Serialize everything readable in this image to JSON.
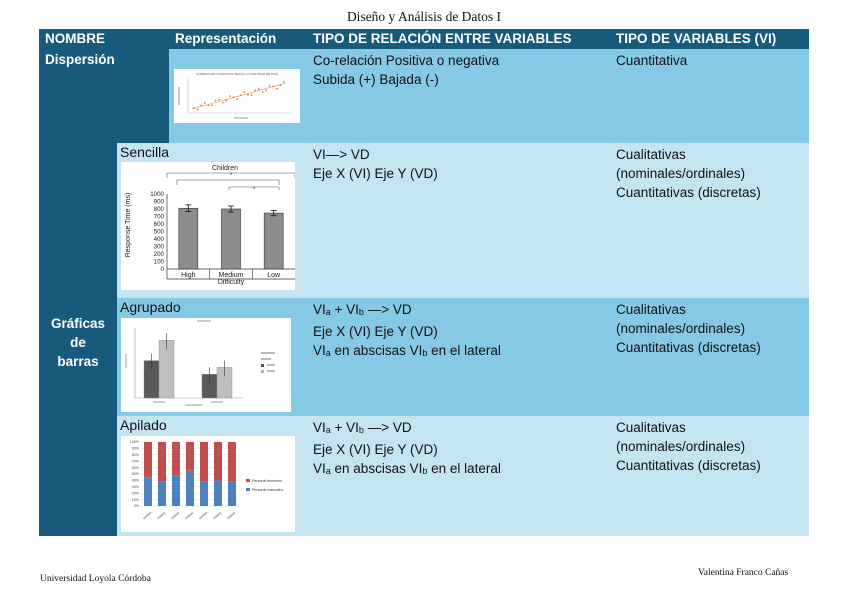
{
  "title": "Diseño y Análisis de Datos I",
  "headers": {
    "nombre": "NOMBRE",
    "representacion": "Representación",
    "relacion": "TIPO DE RELACIÓN ENTRE VARIABLES",
    "variables": "TIPO DE VARIABLES (VI)"
  },
  "dispersion": {
    "name": "Dispersión",
    "relacion_1": "Co-relación Positiva o negativa",
    "relacion_2": "Subida (+) Bajada (-)",
    "variables_1": "Cuantitativa",
    "thumb_title": "NÚMERO DE CONSULTAS SEGÚN LA CANTIDAD DE PAÍS"
  },
  "barras": {
    "name_1": "Gráficas",
    "name_2": "de",
    "name_3": "barras",
    "sencilla": {
      "label": "Sencilla",
      "relacion_1": "VI—> VD",
      "relacion_2": "Eje X (VI) Eje Y (VD)",
      "variables_1": "Cualitativas",
      "variables_2": "(nominales/ordinales)",
      "variables_3": "Cuantitativas  (discretas)",
      "chart": {
        "title": "Children",
        "ylabel": "Response Time (ms)",
        "xlabel": "Difficulty",
        "sig": "*",
        "y_ticks": [
          "1000",
          "900",
          "800",
          "700",
          "600",
          "500",
          "400",
          "300",
          "200",
          "100",
          "0"
        ]
      }
    },
    "agrupado": {
      "label": "Agrupado",
      "relacion_1_a": "VI",
      "relacion_1_sub_a": "a",
      "relacion_1_b": " + VI",
      "relacion_1_sub_b": "b",
      "relacion_1_c": " —> VD",
      "relacion_2": "Eje X (VI) Eje Y (VD)",
      "relacion_3_a": "VI",
      "relacion_3_sub_a": "a",
      "relacion_3_b": " en abscisas VI",
      "relacion_3_sub_b": "b",
      "relacion_3_c": " en el lateral",
      "variables_1": "Cualitativas",
      "variables_2": "(nominales/ordinales)",
      "variables_3": "Cuantitativas  (discretas)"
    },
    "apilado": {
      "label": "Apilado",
      "relacion_1_a": "VI",
      "relacion_1_sub_a": "a",
      "relacion_1_b": " + VI",
      "relacion_1_sub_b": "b",
      "relacion_1_c": " —> VD",
      "relacion_2": "Eje X (VI) Eje Y (VD)",
      "relacion_3_a": "VI",
      "relacion_3_sub_a": "a",
      "relacion_3_b": " en abscisas VI",
      "relacion_3_sub_b": "b",
      "relacion_3_c": " en el lateral",
      "variables_1": "Cualitativas",
      "variables_2": "(nominales/ordinales)",
      "variables_3": "Cuantitativas  (discretas)",
      "legend_1": "Personal femenino",
      "legend_2": "Personal masculino"
    }
  },
  "chart_data": [
    {
      "type": "bar",
      "title": "Children",
      "categories": [
        "High",
        "Medium",
        "Low"
      ],
      "values": [
        810,
        800,
        745
      ],
      "errors": [
        45,
        40,
        35
      ],
      "xlabel": "Difficulty",
      "ylabel": "Response Time (ms)",
      "ylim": [
        0,
        1000
      ]
    },
    {
      "type": "bar",
      "categories": [
        "A",
        "B"
      ],
      "series": [
        {
          "name": "Serie 1",
          "values": [
            0.55,
            0.35
          ]
        },
        {
          "name": "Serie 2",
          "values": [
            0.85,
            0.45
          ]
        }
      ]
    },
    {
      "type": "bar",
      "stacked": true,
      "categories": [
        "C1",
        "C2",
        "C3",
        "C4",
        "C5",
        "C6",
        "C7"
      ],
      "series": [
        {
          "name": "Personal masculino",
          "values": [
            45,
            38,
            48,
            55,
            38,
            40,
            38
          ]
        },
        {
          "name": "Personal femenino",
          "values": [
            55,
            62,
            52,
            45,
            62,
            60,
            62
          ]
        }
      ],
      "ylim": [
        0,
        100
      ]
    }
  ],
  "footer": {
    "left": "Universidad Loyola Córdoba",
    "right": "Valentina Franco Cañas"
  }
}
